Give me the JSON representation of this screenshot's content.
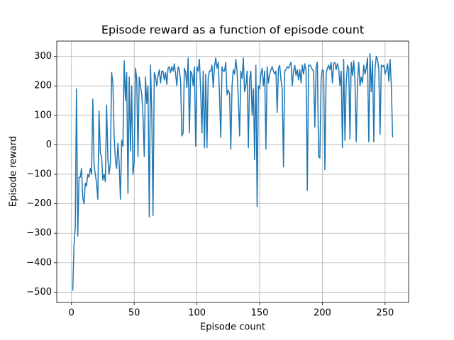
{
  "chart_data": {
    "type": "line",
    "title": "Episode reward as a function of episode count",
    "xlabel": "Episode count",
    "ylabel": "Episode reward",
    "color": "#1f77b4",
    "grid": true,
    "xlim": [
      -11.75,
      268.75
    ],
    "ylim": [
      -535,
      352
    ],
    "xticks": [
      0,
      50,
      100,
      150,
      200,
      250
    ],
    "yticks": [
      {
        "value": -500,
        "label": "−500"
      },
      {
        "value": -400,
        "label": "−400"
      },
      {
        "value": -300,
        "label": "−300"
      },
      {
        "value": -200,
        "label": "−200"
      },
      {
        "value": -100,
        "label": "−100"
      },
      0,
      100,
      200,
      300
    ],
    "x": [
      1,
      2,
      3,
      4,
      5,
      6,
      7,
      8,
      9,
      10,
      11,
      12,
      13,
      14,
      15,
      16,
      17,
      18,
      19,
      20,
      21,
      22,
      23,
      24,
      25,
      26,
      27,
      28,
      29,
      30,
      31,
      32,
      33,
      34,
      35,
      36,
      37,
      38,
      39,
      40,
      41,
      42,
      43,
      44,
      45,
      46,
      47,
      48,
      49,
      50,
      51,
      52,
      53,
      54,
      55,
      56,
      57,
      58,
      59,
      60,
      61,
      62,
      63,
      64,
      65,
      66,
      67,
      68,
      69,
      70,
      71,
      72,
      73,
      74,
      75,
      76,
      77,
      78,
      79,
      80,
      81,
      82,
      83,
      84,
      85,
      86,
      87,
      88,
      89,
      90,
      91,
      92,
      93,
      94,
      95,
      96,
      97,
      98,
      99,
      100,
      101,
      102,
      103,
      104,
      105,
      106,
      107,
      108,
      109,
      110,
      111,
      112,
      113,
      114,
      115,
      116,
      117,
      118,
      119,
      120,
      121,
      122,
      123,
      124,
      125,
      126,
      127,
      128,
      129,
      130,
      131,
      132,
      133,
      134,
      135,
      136,
      137,
      138,
      139,
      140,
      141,
      142,
      143,
      144,
      145,
      146,
      147,
      148,
      149,
      150,
      151,
      152,
      153,
      154,
      155,
      156,
      157,
      158,
      159,
      160,
      161,
      162,
      163,
      164,
      165,
      166,
      167,
      168,
      169,
      170,
      171,
      172,
      173,
      174,
      175,
      176,
      177,
      178,
      179,
      180,
      181,
      182,
      183,
      184,
      185,
      186,
      187,
      188,
      189,
      190,
      191,
      192,
      193,
      194,
      195,
      196,
      197,
      198,
      199,
      200,
      201,
      202,
      203,
      204,
      205,
      206,
      207,
      208,
      209,
      210,
      211,
      212,
      213,
      214,
      215,
      216,
      217,
      218,
      219,
      220,
      221,
      222,
      223,
      224,
      225,
      226,
      227,
      228,
      229,
      230,
      231,
      232,
      233,
      234,
      235,
      236,
      237,
      238,
      239,
      240,
      241,
      242,
      243,
      244,
      245,
      246,
      247,
      248,
      249,
      250,
      251,
      252,
      253,
      254,
      255,
      256
    ],
    "values": [
      -495,
      -340,
      -280,
      190,
      -310,
      -110,
      -110,
      -80,
      -180,
      -200,
      -130,
      -140,
      -100,
      -110,
      -80,
      -100,
      155,
      -70,
      -100,
      -130,
      -185,
      115,
      -30,
      -40,
      -120,
      -100,
      -125,
      135,
      -50,
      -100,
      -60,
      245,
      210,
      30,
      -50,
      -80,
      5,
      -60,
      -185,
      15,
      -5,
      285,
      150,
      245,
      -165,
      230,
      -20,
      200,
      -100,
      -60,
      260,
      225,
      -40,
      230,
      200,
      170,
      100,
      -40,
      230,
      140,
      200,
      -245,
      270,
      110,
      -240,
      245,
      230,
      200,
      235,
      255,
      210,
      250,
      250,
      220,
      245,
      205,
      260,
      265,
      245,
      265,
      250,
      275,
      240,
      200,
      265,
      255,
      215,
      30,
      40,
      260,
      245,
      195,
      295,
      40,
      250,
      240,
      200,
      265,
      -5,
      265,
      250,
      290,
      180,
      40,
      250,
      -10,
      240,
      -10,
      230,
      250,
      250,
      270,
      195,
      265,
      295,
      260,
      280,
      170,
      25,
      265,
      250,
      250,
      280,
      170,
      185,
      175,
      -15,
      200,
      255,
      240,
      290,
      250,
      160,
      30,
      250,
      225,
      295,
      180,
      200,
      250,
      -10,
      220,
      250,
      100,
      190,
      -50,
      270,
      -210,
      200,
      190,
      240,
      260,
      200,
      250,
      -15,
      265,
      210,
      240,
      255,
      265,
      250,
      240,
      250,
      110,
      260,
      270,
      220,
      190,
      -75,
      250,
      255,
      265,
      260,
      270,
      280,
      200,
      250,
      270,
      235,
      255,
      220,
      255,
      210,
      270,
      240,
      275,
      250,
      -155,
      270,
      270,
      265,
      255,
      250,
      60,
      265,
      280,
      -40,
      -45,
      220,
      255,
      250,
      -85,
      240,
      260,
      270,
      255,
      280,
      210,
      275,
      280,
      255,
      275,
      260,
      200,
      250,
      -10,
      290,
      15,
      210,
      270,
      260,
      20,
      280,
      235,
      285,
      215,
      10,
      210,
      280,
      200,
      230,
      210,
      270,
      240,
      260,
      295,
      10,
      310,
      180,
      285,
      10,
      260,
      300,
      290,
      255,
      35,
      270,
      265,
      270,
      240,
      255,
      275,
      215,
      290,
      200,
      25
    ]
  }
}
